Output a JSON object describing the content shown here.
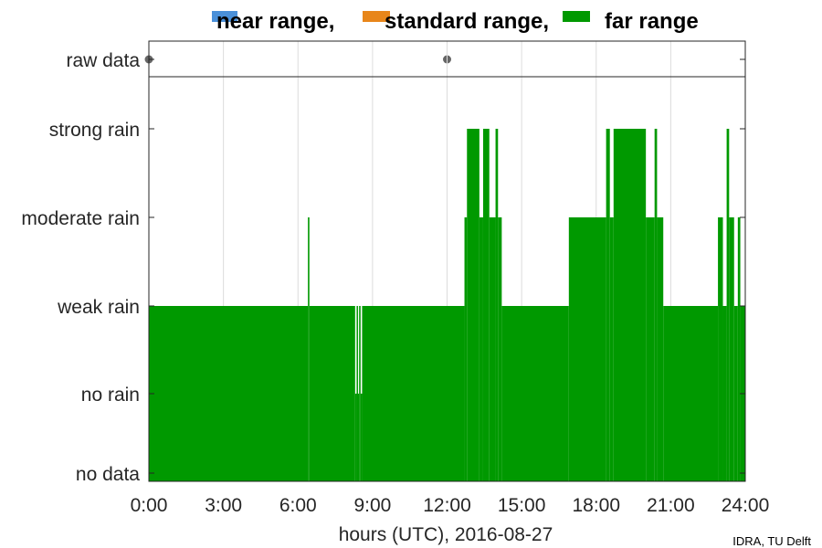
{
  "chart_data": {
    "type": "step",
    "xlabel": "hours (UTC), 2016-08-27",
    "x_ticks": [
      "0:00",
      "3:00",
      "6:00",
      "9:00",
      "12:00",
      "15:00",
      "18:00",
      "21:00",
      "24:00"
    ],
    "xlim": [
      0,
      24
    ],
    "y_categories": [
      "no data",
      "no rain",
      "weak rain",
      "moderate rain",
      "strong rain"
    ],
    "top_panel_label": "raw data",
    "grid": true,
    "legend_position": "top",
    "credit": "IDRA, TU Delft",
    "series": [
      {
        "name": "near range,",
        "color": "#4a90d9"
      },
      {
        "name": "standard range,",
        "color": "#e8861a"
      },
      {
        "name": "far range",
        "color": "#009900"
      }
    ],
    "raw_data_points_hours": [
      0,
      12
    ],
    "far_range_intervals": [
      {
        "from": 0.0,
        "to": 6.4,
        "level": "weak rain"
      },
      {
        "from": 6.4,
        "to": 6.46,
        "level": "moderate rain"
      },
      {
        "from": 6.46,
        "to": 8.3,
        "level": "weak rain"
      },
      {
        "from": 8.3,
        "to": 8.36,
        "level": "no rain"
      },
      {
        "from": 8.36,
        "to": 8.4,
        "level": "weak rain"
      },
      {
        "from": 8.4,
        "to": 8.46,
        "level": "no rain"
      },
      {
        "from": 8.46,
        "to": 8.52,
        "level": "weak rain"
      },
      {
        "from": 8.52,
        "to": 8.58,
        "level": "no rain"
      },
      {
        "from": 8.58,
        "to": 12.7,
        "level": "weak rain"
      },
      {
        "from": 12.7,
        "to": 12.8,
        "level": "moderate rain"
      },
      {
        "from": 12.8,
        "to": 13.3,
        "level": "strong rain"
      },
      {
        "from": 13.3,
        "to": 13.45,
        "level": "moderate rain"
      },
      {
        "from": 13.45,
        "to": 13.7,
        "level": "strong rain"
      },
      {
        "from": 13.7,
        "to": 13.95,
        "level": "moderate rain"
      },
      {
        "from": 13.95,
        "to": 14.05,
        "level": "strong rain"
      },
      {
        "from": 14.05,
        "to": 14.2,
        "level": "moderate rain"
      },
      {
        "from": 14.2,
        "to": 16.9,
        "level": "weak rain"
      },
      {
        "from": 16.9,
        "to": 18.4,
        "level": "moderate rain"
      },
      {
        "from": 18.4,
        "to": 18.55,
        "level": "strong rain"
      },
      {
        "from": 18.55,
        "to": 18.7,
        "level": "moderate rain"
      },
      {
        "from": 18.7,
        "to": 20.0,
        "level": "strong rain"
      },
      {
        "from": 20.0,
        "to": 20.35,
        "level": "moderate rain"
      },
      {
        "from": 20.35,
        "to": 20.45,
        "level": "strong rain"
      },
      {
        "from": 20.45,
        "to": 20.7,
        "level": "moderate rain"
      },
      {
        "from": 20.7,
        "to": 22.9,
        "level": "weak rain"
      },
      {
        "from": 22.9,
        "to": 23.1,
        "level": "moderate rain"
      },
      {
        "from": 23.1,
        "to": 23.25,
        "level": "weak rain"
      },
      {
        "from": 23.25,
        "to": 23.35,
        "level": "strong rain"
      },
      {
        "from": 23.35,
        "to": 23.55,
        "level": "moderate rain"
      },
      {
        "from": 23.55,
        "to": 23.7,
        "level": "weak rain"
      },
      {
        "from": 23.7,
        "to": 23.8,
        "level": "moderate rain"
      },
      {
        "from": 23.8,
        "to": 24.0,
        "level": "weak rain"
      }
    ]
  }
}
